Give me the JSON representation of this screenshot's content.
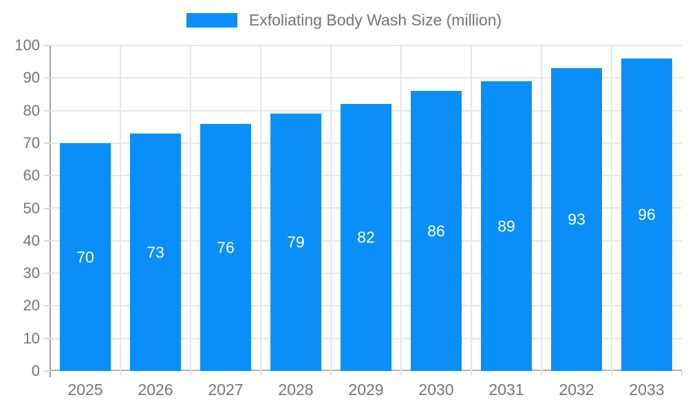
{
  "chart_data": {
    "type": "bar",
    "title": "Exfoliating Body Wash Size (million)",
    "categories": [
      "2025",
      "2026",
      "2027",
      "2028",
      "2029",
      "2030",
      "2031",
      "2032",
      "2033"
    ],
    "values": [
      70,
      73,
      76,
      79,
      82,
      86,
      89,
      93,
      96
    ],
    "xlabel": "",
    "ylabel": "",
    "ylim": [
      0,
      100
    ],
    "yticks": [
      0,
      10,
      20,
      30,
      40,
      50,
      60,
      70,
      80,
      90,
      100
    ],
    "grid": true,
    "legend_position": "top",
    "bar_color": "#0a8ff8",
    "bar_label_color": "#ffffff",
    "axis_text_color": "#757575",
    "grid_color": "#e6e6e6",
    "axis_line_color": "#9e9e9e"
  }
}
